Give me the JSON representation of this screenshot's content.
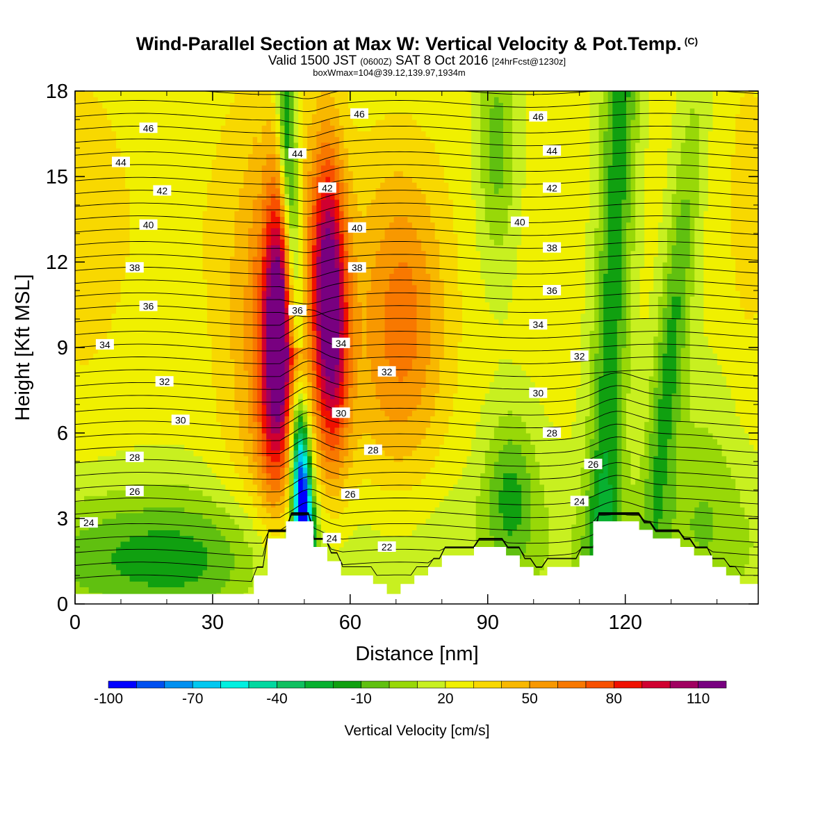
{
  "title": {
    "line1": "Wind-Parallel Section at Max W: Vertical Velocity & Pot.Temp.",
    "copyright": "(C)",
    "valid_prefix": "Valid 1500 JST",
    "utc": "(0600Z)",
    "date": "SAT 8 Oct 2016",
    "forecast": "[24hrFcst@1230z]",
    "box_max": "boxWmax=104@39.12,139.97,1934m"
  },
  "chart_data": {
    "type": "heatmap",
    "xlabel": "Distance [nm]",
    "ylabel": "Height [Kft MSL]",
    "xlim": [
      0,
      149
    ],
    "ylim": [
      0,
      18
    ],
    "x_ticks": [
      "0",
      "30",
      "60",
      "90",
      "120"
    ],
    "x_tick_values": [
      0,
      30,
      60,
      90,
      120
    ],
    "y_ticks": [
      "0",
      "3",
      "6",
      "9",
      "12",
      "15",
      "18"
    ],
    "y_tick_values": [
      0,
      3,
      6,
      9,
      12,
      15,
      18
    ],
    "colorbar": {
      "label": "Vertical Velocity [cm/s]",
      "tick_labels": [
        "-100",
        "-70",
        "-40",
        "-10",
        "20",
        "50",
        "80",
        "110"
      ],
      "tick_values": [
        -100,
        -70,
        -40,
        -10,
        20,
        50,
        80,
        110
      ],
      "levels": [
        -100,
        -90,
        -80,
        -70,
        -60,
        -50,
        -40,
        -30,
        -20,
        -10,
        0,
        10,
        20,
        30,
        40,
        50,
        60,
        70,
        80,
        90,
        100,
        110,
        120
      ],
      "colors": [
        "#0000ff",
        "#0050f0",
        "#0090f0",
        "#00c8f0",
        "#00f0e0",
        "#00d8a0",
        "#10c060",
        "#08b030",
        "#10a010",
        "#60c010",
        "#98d808",
        "#c8f020",
        "#f0f000",
        "#f8d800",
        "#f8b800",
        "#f89800",
        "#f87800",
        "#f85000",
        "#f01000",
        "#d00030",
        "#a00060",
        "#780080"
      ]
    },
    "theta_contour_labels": [
      {
        "value": "46",
        "x": 16,
        "z": 16.7
      },
      {
        "value": "44",
        "x": 10,
        "z": 15.5
      },
      {
        "value": "42",
        "x": 19,
        "z": 14.5
      },
      {
        "value": "40",
        "x": 16,
        "z": 13.3
      },
      {
        "value": "38",
        "x": 13,
        "z": 11.8
      },
      {
        "value": "36",
        "x": 16,
        "z": 10.45
      },
      {
        "value": "34",
        "x": 6.5,
        "z": 9.1
      },
      {
        "value": "32",
        "x": 19.5,
        "z": 7.8
      },
      {
        "value": "30",
        "x": 23,
        "z": 6.45
      },
      {
        "value": "28",
        "x": 13,
        "z": 5.15
      },
      {
        "value": "26",
        "x": 13,
        "z": 3.95
      },
      {
        "value": "24",
        "x": 3,
        "z": 2.85
      },
      {
        "value": "44",
        "x": 48.5,
        "z": 15.8
      },
      {
        "value": "42",
        "x": 55,
        "z": 14.6
      },
      {
        "value": "40",
        "x": 61.5,
        "z": 13.2
      },
      {
        "value": "38",
        "x": 61.5,
        "z": 11.8
      },
      {
        "value": "36",
        "x": 48.5,
        "z": 10.3
      },
      {
        "value": "34",
        "x": 58,
        "z": 9.15
      },
      {
        "value": "32",
        "x": 68,
        "z": 8.15
      },
      {
        "value": "30",
        "x": 58,
        "z": 6.7
      },
      {
        "value": "28",
        "x": 65,
        "z": 5.4
      },
      {
        "value": "26",
        "x": 60,
        "z": 3.85
      },
      {
        "value": "24",
        "x": 56,
        "z": 2.3
      },
      {
        "value": "22",
        "x": 68,
        "z": 2.0
      },
      {
        "value": "46",
        "x": 62,
        "z": 17.2
      },
      {
        "value": "46",
        "x": 101,
        "z": 17.1
      },
      {
        "value": "44",
        "x": 104,
        "z": 15.9
      },
      {
        "value": "42",
        "x": 104,
        "z": 14.6
      },
      {
        "value": "40",
        "x": 97,
        "z": 13.4
      },
      {
        "value": "38",
        "x": 104,
        "z": 12.5
      },
      {
        "value": "36",
        "x": 104,
        "z": 11.0
      },
      {
        "value": "34",
        "x": 101,
        "z": 9.8
      },
      {
        "value": "32",
        "x": 110,
        "z": 8.7
      },
      {
        "value": "30",
        "x": 101,
        "z": 7.4
      },
      {
        "value": "28",
        "x": 104,
        "z": 6.0
      },
      {
        "value": "26",
        "x": 113,
        "z": 4.9
      },
      {
        "value": "24",
        "x": 110,
        "z": 3.6
      }
    ],
    "terrain_profile": [
      {
        "x": 0,
        "z": 0.35
      },
      {
        "x": 39,
        "z": 0.35
      },
      {
        "x": 39,
        "z": 1.0
      },
      {
        "x": 42,
        "z": 1.0
      },
      {
        "x": 42,
        "z": 2.3
      },
      {
        "x": 46,
        "z": 2.3
      },
      {
        "x": 46,
        "z": 2.9
      },
      {
        "x": 52,
        "z": 2.9
      },
      {
        "x": 52,
        "z": 2.0
      },
      {
        "x": 55,
        "z": 2.0
      },
      {
        "x": 55,
        "z": 1.5
      },
      {
        "x": 58,
        "z": 1.5
      },
      {
        "x": 58,
        "z": 1.0
      },
      {
        "x": 65,
        "z": 1.0
      },
      {
        "x": 65,
        "z": 0.7
      },
      {
        "x": 68,
        "z": 0.7
      },
      {
        "x": 68,
        "z": 0.35
      },
      {
        "x": 71,
        "z": 0.35
      },
      {
        "x": 71,
        "z": 0.7
      },
      {
        "x": 74,
        "z": 0.7
      },
      {
        "x": 74,
        "z": 1.0
      },
      {
        "x": 77,
        "z": 1.0
      },
      {
        "x": 77,
        "z": 1.3
      },
      {
        "x": 80,
        "z": 1.3
      },
      {
        "x": 80,
        "z": 1.7
      },
      {
        "x": 87,
        "z": 1.7
      },
      {
        "x": 87,
        "z": 2.0
      },
      {
        "x": 94,
        "z": 2.0
      },
      {
        "x": 94,
        "z": 1.7
      },
      {
        "x": 97,
        "z": 1.7
      },
      {
        "x": 97,
        "z": 1.3
      },
      {
        "x": 100,
        "z": 1.3
      },
      {
        "x": 100,
        "z": 1.0
      },
      {
        "x": 103,
        "z": 1.0
      },
      {
        "x": 103,
        "z": 1.3
      },
      {
        "x": 110,
        "z": 1.3
      },
      {
        "x": 110,
        "z": 1.7
      },
      {
        "x": 113,
        "z": 1.7
      },
      {
        "x": 113,
        "z": 2.9
      },
      {
        "x": 123,
        "z": 2.9
      },
      {
        "x": 123,
        "z": 2.6
      },
      {
        "x": 126,
        "z": 2.6
      },
      {
        "x": 126,
        "z": 2.3
      },
      {
        "x": 132,
        "z": 2.3
      },
      {
        "x": 132,
        "z": 2.0
      },
      {
        "x": 135,
        "z": 2.0
      },
      {
        "x": 135,
        "z": 1.7
      },
      {
        "x": 139,
        "z": 1.7
      },
      {
        "x": 139,
        "z": 1.3
      },
      {
        "x": 142,
        "z": 1.3
      },
      {
        "x": 142,
        "z": 1.0
      },
      {
        "x": 145,
        "z": 1.0
      },
      {
        "x": 145,
        "z": 0.7
      },
      {
        "x": 149,
        "z": 0.7
      }
    ]
  }
}
